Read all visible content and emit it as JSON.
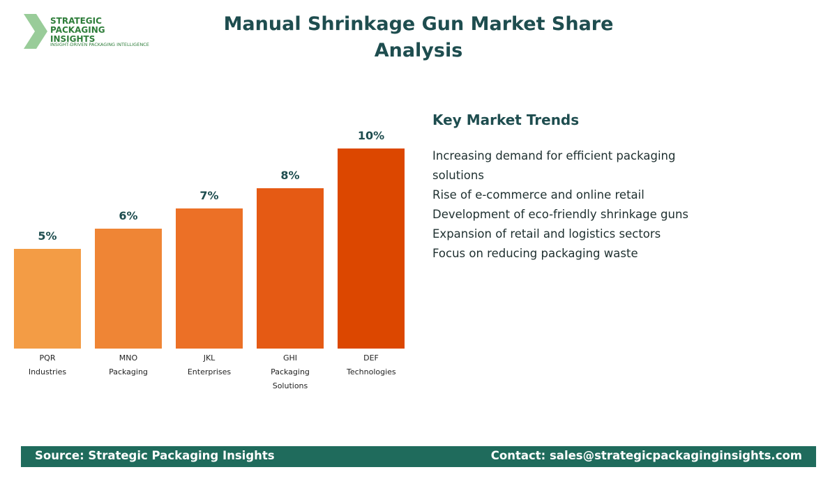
{
  "logo": {
    "name": "STRATEGIC PACKAGING INSIGHTS",
    "tagline": "INSIGHT-DRIVEN PACKAGING INTELLIGENCE"
  },
  "chart_data": {
    "type": "bar",
    "title": "Manual Shrinkage Gun Market Share Analysis",
    "categories": [
      "PQR Industries",
      "MNO Packaging",
      "JKL Enterprises",
      "GHI Packaging Solutions",
      "DEF Technologies"
    ],
    "values": [
      5,
      6,
      7,
      8,
      10
    ],
    "value_labels": [
      "5%",
      "6%",
      "7%",
      "8%",
      "10%"
    ],
    "colors": [
      "#f39c45",
      "#ef8535",
      "#ec7026",
      "#e55a14",
      "#dc4700"
    ]
  },
  "trends": {
    "title": "Key Market Trends",
    "items": [
      "Increasing demand for efficient packaging solutions",
      "Rise of e-commerce and online retail",
      "Development of eco-friendly shrinkage guns",
      "Expansion of retail and logistics sectors",
      "Focus on reducing packaging waste"
    ]
  },
  "footer": {
    "source": "Source: Strategic Packaging Insights",
    "contact": "Contact: sales@strategicpackaginginsights.com"
  }
}
